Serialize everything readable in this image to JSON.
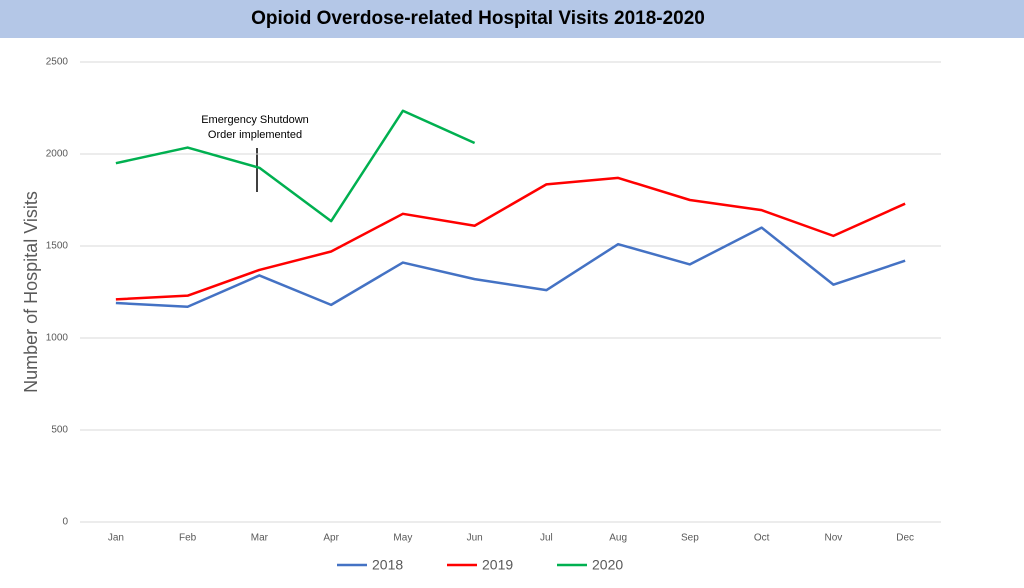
{
  "chart_data": {
    "type": "line",
    "title": "Opioid Overdose-related Hospital Visits 2018-2020",
    "ylabel": "Number of Hospital Visits",
    "annotation": [
      "Emergency Shutdown",
      "Order implemented"
    ],
    "categories": [
      "Jan",
      "Feb",
      "Mar",
      "Apr",
      "May",
      "Jun",
      "Jul",
      "Aug",
      "Sep",
      "Oct",
      "Nov",
      "Dec"
    ],
    "series": [
      {
        "name": "2018",
        "color": "#4472c4",
        "values": [
          1190,
          1170,
          1340,
          1180,
          1410,
          1320,
          1260,
          1510,
          1400,
          1600,
          1290,
          1420
        ]
      },
      {
        "name": "2019",
        "color": "#ff0000",
        "values": [
          1210,
          1230,
          1370,
          1470,
          1675,
          1610,
          1835,
          1870,
          1750,
          1695,
          1555,
          1730
        ]
      },
      {
        "name": "2020",
        "color": "#00b050",
        "values": [
          1950,
          2035,
          1925,
          1635,
          2235,
          2060,
          null,
          null,
          null,
          null,
          null,
          null
        ]
      }
    ],
    "ylim": [
      0,
      2500
    ],
    "yticks": [
      0,
      500,
      1000,
      1500,
      2000,
      2500
    ],
    "grid": true,
    "legend": "bottom"
  }
}
